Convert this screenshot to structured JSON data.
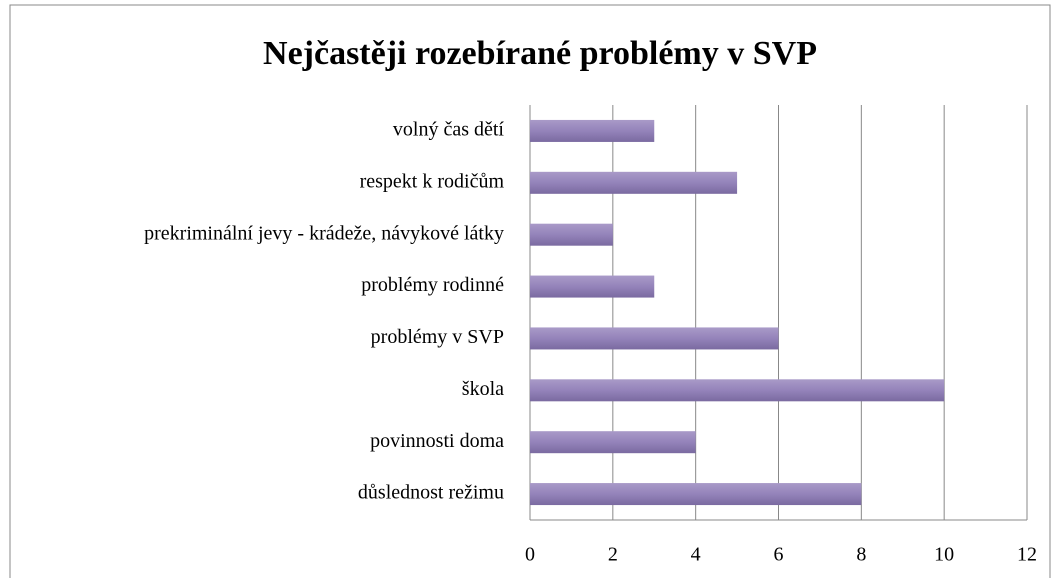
{
  "chart_data": {
    "type": "hbar",
    "title": "Nejčastěji rozebírané problémy v SVP",
    "categories": [
      "volný čas dětí",
      "respekt k rodičům",
      "prekriminální jevy - krádeže, návykové látky",
      "problémy rodinné",
      "problémy v SVP",
      "škola",
      "povinnosti doma",
      "důslednost režimu"
    ],
    "values": [
      3,
      5,
      2,
      3,
      6,
      10,
      4,
      8
    ],
    "color": "#8e7cb4",
    "xlim": [
      0,
      12
    ],
    "xticks": [
      0,
      2,
      4,
      6,
      8,
      10,
      12
    ],
    "grid": true
  }
}
